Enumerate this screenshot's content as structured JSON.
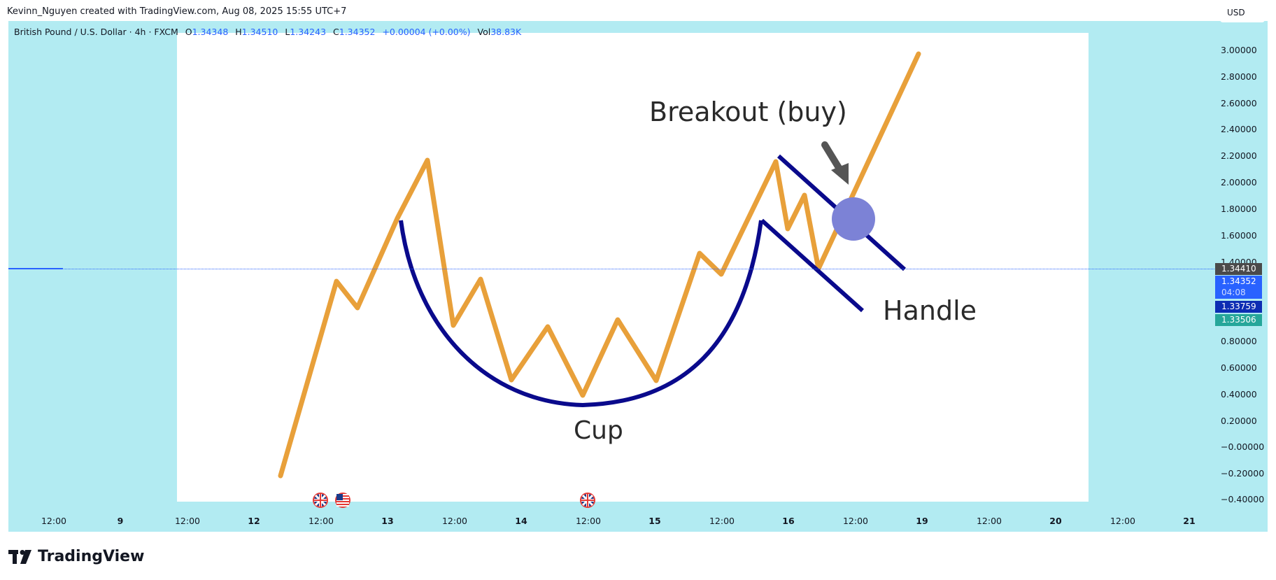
{
  "header": {
    "attribution": "Kevinn_Nguyen created with TradingView.com, Aug 08, 2025 15:55 UTC+7"
  },
  "legend": {
    "symbol": "British Pound / U.S. Dollar · 4h · FXCM",
    "open_label": "O",
    "open": "1.34348",
    "high_label": "H",
    "high": "1.34510",
    "low_label": "L",
    "low": "1.34243",
    "close_label": "C",
    "close": "1.34352",
    "change": "+0.00004 (+0.00%)",
    "vol_label": "Vol",
    "vol": "38.83K"
  },
  "price_scale": {
    "currency": "USD",
    "ticks": [
      "3.00000",
      "2.80000",
      "2.60000",
      "2.40000",
      "2.20000",
      "2.00000",
      "1.80000",
      "1.60000",
      "1.40000",
      "0.80000",
      "0.60000",
      "0.40000",
      "0.20000",
      "−0.00000",
      "−0.20000",
      "−0.40000"
    ],
    "tags": [
      {
        "label": "1.34410",
        "color": "#4a4a4a"
      },
      {
        "label": "1.34352",
        "color": "#2962ff"
      },
      {
        "label": "04:08",
        "color": "#2962ff"
      },
      {
        "label": "1.33759",
        "color": "#0d2db3"
      },
      {
        "label": "1.33506",
        "color": "#26a69a"
      }
    ]
  },
  "time_axis": {
    "labels": [
      {
        "text": "12:00",
        "bold": false
      },
      {
        "text": "9",
        "bold": true
      },
      {
        "text": "12:00",
        "bold": false
      },
      {
        "text": "12",
        "bold": true
      },
      {
        "text": "12:00",
        "bold": false
      },
      {
        "text": "13",
        "bold": true
      },
      {
        "text": "12:00",
        "bold": false
      },
      {
        "text": "14",
        "bold": true
      },
      {
        "text": "12:00",
        "bold": false
      },
      {
        "text": "15",
        "bold": true
      },
      {
        "text": "12:00",
        "bold": false
      },
      {
        "text": "16",
        "bold": true
      },
      {
        "text": "12:00",
        "bold": false
      },
      {
        "text": "19",
        "bold": true
      },
      {
        "text": "12:00",
        "bold": false
      },
      {
        "text": "20",
        "bold": true
      },
      {
        "text": "12:00",
        "bold": false
      },
      {
        "text": "21",
        "bold": true
      }
    ]
  },
  "events": [
    "uk-flag-icon",
    "us-flag-icon",
    "uk-flag-icon"
  ],
  "image": {
    "breakout_label": "Breakout (buy)",
    "handle_label": "Handle",
    "cup_label": "Cup"
  },
  "colors": {
    "background": "#b2ebf2",
    "price_line": "#e8a03a",
    "cup_line": "#00008b",
    "breakout_dot": "#7c82d6",
    "arrow": "#555555"
  },
  "brand": {
    "name": "TradingView"
  }
}
